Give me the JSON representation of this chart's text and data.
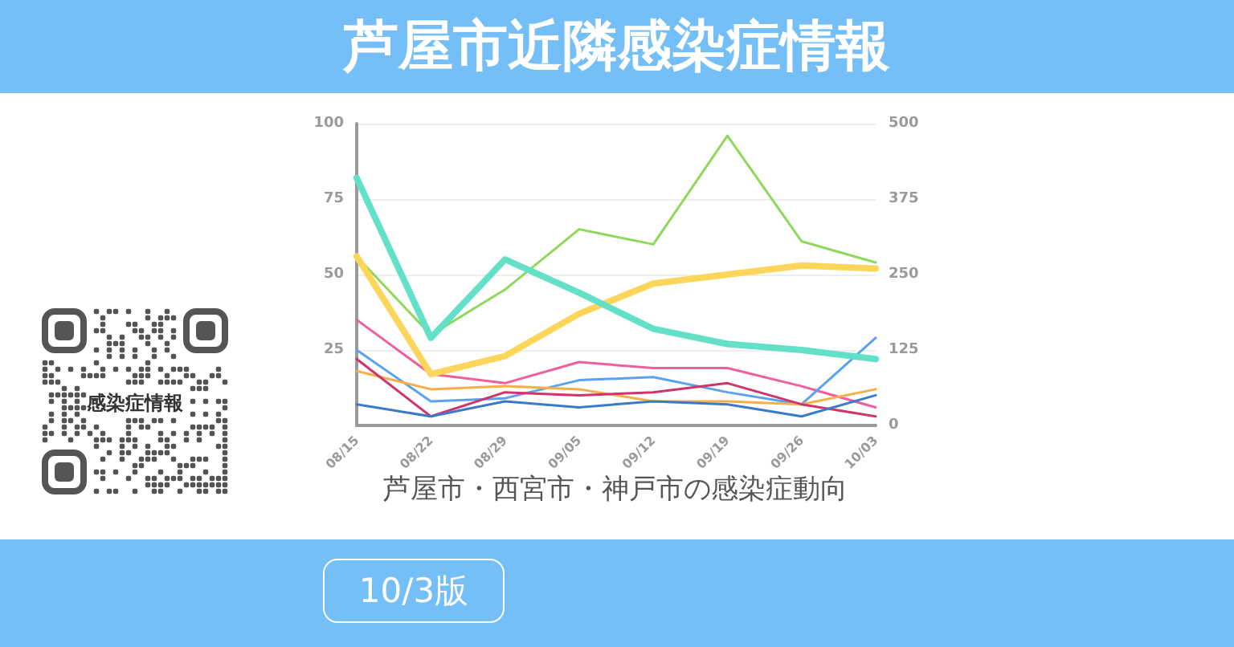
{
  "chart_data": {
    "type": "line",
    "title": "芦屋市近隣感染症情報",
    "subtitle": "芦屋市・西宮市・神戸市の感染症動向",
    "annotations": [
      "感染症情報",
      "10/3版"
    ],
    "categories": [
      "08/15",
      "08/22",
      "08/29",
      "09/05",
      "09/12",
      "09/19",
      "09/26",
      "10/03"
    ],
    "series": [
      {
        "color": "#8ed85a",
        "values": [
          56,
          30,
          45,
          65,
          60,
          96,
          61,
          54
        ]
      },
      {
        "color": "#ee5f9e",
        "values": [
          35,
          17,
          14,
          21,
          19,
          19,
          13,
          6
        ]
      },
      {
        "color": "#5aa2f0",
        "values": [
          25,
          8,
          9,
          15,
          16,
          11,
          7,
          29
        ]
      },
      {
        "color": "#f5ae48",
        "values": [
          18,
          12,
          13,
          12,
          8,
          8,
          7,
          12
        ]
      },
      {
        "color": "#d0346c",
        "values": [
          22,
          3,
          11,
          10,
          11,
          14,
          7,
          3
        ]
      },
      {
        "color": "#3a7acb",
        "values": [
          7,
          3,
          8,
          6,
          8,
          7,
          3,
          10
        ]
      },
      {
        "color": "#fcd65a",
        "values": [
          56,
          17,
          23,
          37,
          47,
          50,
          53,
          52
        ]
      },
      {
        "color": "#62e0c8",
        "values": [
          82,
          29,
          55,
          44,
          32,
          27,
          25,
          22
        ]
      }
    ],
    "ylim": [
      0,
      100
    ],
    "yticks": [
      25,
      50,
      75,
      100
    ],
    "y2lim": [
      0,
      500
    ],
    "y2ticks": [
      0,
      125,
      250,
      375,
      500
    ],
    "grid": "y",
    "marker": "none",
    "line_style": "solid"
  }
}
